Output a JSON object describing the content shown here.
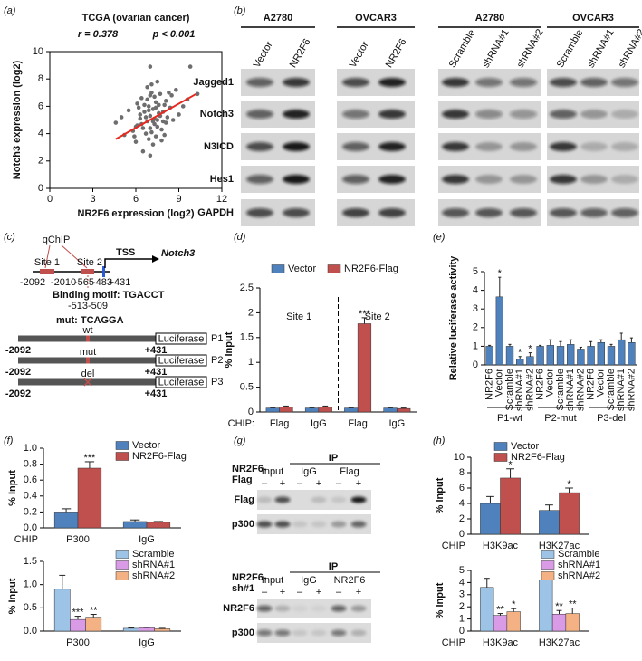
{
  "panel_labels": [
    "(a)",
    "(b)",
    "(c)",
    "(d)",
    "(e)",
    "(f)",
    "(g)",
    "(h)"
  ],
  "chart_data": [
    {
      "type": "scatter",
      "title": "TCGA (ovarian cancer)",
      "annotations": [
        "r = 0.378",
        "p < 0.001"
      ],
      "x_label": "NR2F6 expression (log2)",
      "y_label": "Notch3 expression (log2)",
      "color": "#6e6e6e",
      "x": [
        5.2,
        5.8,
        6.1,
        6.3,
        6.5,
        6.6,
        6.8,
        6.9,
        7.0,
        7.1,
        7.2,
        7.3,
        7.4,
        7.5,
        7.6,
        7.8,
        8.0,
        8.2,
        8.5,
        9.0,
        9.6,
        10.3,
        4.6,
        5.5,
        6.0,
        6.2,
        6.4,
        6.7,
        6.9,
        7.0,
        7.1,
        7.2,
        7.4,
        7.5,
        7.7,
        7.9,
        8.1,
        8.4,
        8.8,
        9.3,
        5.0,
        5.9,
        6.3,
        6.6,
        6.8,
        7.0,
        7.3,
        7.5,
        7.8,
        8.1,
        8.6,
        6.5,
        6.9,
        7.2,
        7.6,
        7.0,
        6.8,
        7.4,
        6.1,
        7.9,
        8.3,
        7.1,
        6.7,
        7.3,
        7.7,
        6.4,
        7.0,
        8.0,
        9.8,
        6.0
      ],
      "y": [
        3.9,
        4.2,
        4.6,
        5.1,
        4.4,
        5.6,
        4.9,
        6.0,
        5.3,
        4.1,
        5.8,
        4.7,
        6.3,
        5.0,
        5.5,
        4.3,
        6.1,
        5.2,
        6.8,
        5.4,
        6.5,
        6.9,
        4.8,
        5.7,
        3.4,
        5.9,
        6.6,
        4.0,
        3.6,
        6.8,
        7.0,
        3.2,
        5.9,
        4.5,
        6.9,
        5.6,
        4.8,
        5.9,
        7.2,
        6.0,
        5.2,
        3.8,
        5.4,
        6.1,
        7.4,
        4.4,
        5.1,
        7.8,
        3.5,
        6.4,
        5.0,
        2.7,
        5.7,
        4.9,
        6.1,
        8.9,
        6.5,
        3.8,
        6.2,
        4.9,
        7.0,
        7.6,
        5.2,
        6.7,
        5.3,
        4.7,
        2.4,
        3.9,
        8.9,
        4.5
      ],
      "fit_line": {
        "x": [
          4.6,
          10.2
        ],
        "y": [
          3.6,
          6.9
        ],
        "color": "#e8281e"
      },
      "xlim": [
        0,
        12
      ],
      "xticks": [
        0,
        3,
        6,
        9,
        12
      ],
      "ylim": [
        0,
        10
      ],
      "yticks": [
        0,
        2,
        4,
        6,
        8,
        10
      ]
    },
    {
      "type": "bar",
      "legend": "top",
      "y_label": "% Input",
      "category_title": "CHIP:",
      "categories": [
        "Flag",
        "IgG",
        "Flag",
        "IgG"
      ],
      "group_labels": [
        "Site 1",
        "Site 2"
      ],
      "group_divider": true,
      "series": [
        {
          "name": "Vector",
          "color": "#4f81bd",
          "values": [
            0.08,
            0.08,
            0.08,
            0.08
          ],
          "errors": [
            0.01,
            0.01,
            0.01,
            0.01
          ]
        },
        {
          "name": "NR2F6-Flag",
          "color": "#c0504d",
          "values": [
            0.1,
            0.1,
            1.78,
            0.07
          ],
          "errors": [
            0.02,
            0.02,
            0.12,
            0.01
          ],
          "significance": [
            null,
            null,
            "***",
            null
          ]
        }
      ],
      "ylim": [
        0,
        2.5
      ],
      "yticks": [
        0,
        0.5,
        1,
        1.5,
        2,
        2.5
      ]
    },
    {
      "type": "bar",
      "y_label": "Relative luciferase activity",
      "rotate_labels": true,
      "categories": [
        "NR2F6",
        "Vector",
        "Scramble",
        "shRNA#1",
        "shRNA#2",
        "NR2F6",
        "Vector",
        "Scramble",
        "shRNA#1",
        "shRNA#2",
        "NR2F6",
        "Vector",
        "Scramble",
        "shRNA#1",
        "shRNA#2"
      ],
      "group_labels": [
        "P1-wt",
        "P2-mut",
        "P3-del"
      ],
      "series": [
        {
          "color": "#4f81bd",
          "values": [
            1.0,
            3.65,
            1.0,
            0.3,
            0.45,
            1.0,
            1.05,
            1.0,
            1.1,
            0.85,
            1.0,
            1.2,
            1.0,
            1.35,
            1.2
          ],
          "errors": [
            0.05,
            1.05,
            0.1,
            0.15,
            0.2,
            0.05,
            0.3,
            0.25,
            0.25,
            0.1,
            0.25,
            0.15,
            0.1,
            0.35,
            0.25
          ],
          "significance": [
            null,
            "*",
            null,
            "*",
            "*",
            null,
            null,
            null,
            null,
            null,
            null,
            null,
            null,
            null,
            null
          ]
        }
      ],
      "ylim": [
        0,
        5
      ],
      "yticks": [
        0,
        1,
        2,
        3,
        4,
        5
      ]
    },
    {
      "type": "bar",
      "legend": "upper right",
      "y_label": "% Input",
      "category_title": "CHIP",
      "categories": [
        "P300",
        "IgG"
      ],
      "series": [
        {
          "name": "Vector",
          "color": "#4f81bd",
          "values": [
            0.2,
            0.08
          ],
          "errors": [
            0.04,
            0.02
          ]
        },
        {
          "name": "NR2F6-Flag",
          "color": "#c0504d",
          "values": [
            0.75,
            0.07
          ],
          "errors": [
            0.08,
            0.01
          ],
          "significance": [
            "***",
            null
          ]
        }
      ],
      "ylim": [
        0,
        1
      ],
      "yticks": [
        {
          "value": 0,
          "label": "0.0"
        },
        0.2,
        0.4,
        0.6,
        0.8,
        {
          "value": 1,
          "label": "1.0"
        }
      ]
    },
    {
      "type": "bar",
      "legend": "upper right",
      "y_label": "% Input",
      "categories": [
        "P300",
        "IgG"
      ],
      "series": [
        {
          "name": "Scramble",
          "color": "#9dc3e6",
          "values": [
            0.9,
            0.06
          ],
          "errors": [
            0.3,
            0.01
          ]
        },
        {
          "name": "shRNA#1",
          "color": "#d99ae6",
          "values": [
            0.25,
            0.07
          ],
          "errors": [
            0.07,
            0.01
          ],
          "significance": [
            "***",
            null
          ]
        },
        {
          "name": "shRNA#2",
          "color": "#f4b183",
          "values": [
            0.3,
            0.05
          ],
          "errors": [
            0.06,
            0.01
          ],
          "significance": [
            "**",
            null
          ]
        }
      ],
      "ylim": [
        0,
        1.5
      ],
      "yticks": [
        {
          "value": 0,
          "label": "0.0"
        },
        0.5,
        {
          "value": 1,
          "label": "1.0"
        },
        1.5
      ]
    },
    {
      "type": "bar",
      "legend": "upper right",
      "y_label": "% Input",
      "category_title": "CHIP",
      "categories": [
        "H3K9ac",
        "H3K27ac"
      ],
      "series": [
        {
          "name": "Vector",
          "color": "#4f81bd",
          "values": [
            4.0,
            3.1
          ],
          "errors": [
            0.9,
            0.7
          ]
        },
        {
          "name": "NR2F6-Flag",
          "color": "#c0504d",
          "values": [
            7.3,
            5.4
          ],
          "errors": [
            1.2,
            0.6
          ],
          "significance": [
            "*",
            "*"
          ]
        }
      ],
      "ylim": [
        0,
        10
      ],
      "yticks": [
        0,
        2,
        4,
        6,
        8,
        10
      ]
    },
    {
      "type": "bar",
      "legend": "upper right",
      "y_label": "% Input",
      "category_title": "CHIP",
      "categories": [
        "H3K9ac",
        "H3K27ac"
      ],
      "series": [
        {
          "name": "Scramble",
          "color": "#9dc3e6",
          "values": [
            3.6,
            4.2
          ],
          "errors": [
            0.75,
            0.5
          ]
        },
        {
          "name": "shRNA#1",
          "color": "#d99ae6",
          "values": [
            1.3,
            1.4
          ],
          "errors": [
            0.15,
            0.3
          ],
          "significance": [
            "**",
            "**"
          ]
        },
        {
          "name": "shRNA#2",
          "color": "#f4b183",
          "values": [
            1.6,
            1.45
          ],
          "errors": [
            0.25,
            0.45
          ],
          "significance": [
            "*",
            "**"
          ]
        }
      ],
      "ylim": [
        0,
        5
      ],
      "yticks": [
        0,
        1,
        2,
        3,
        4,
        5
      ]
    }
  ],
  "blot_b": {
    "groups": [
      {
        "name": "A2780",
        "lanes": [
          "Vector",
          "NR2F6"
        ]
      },
      {
        "name": "OVCAR3",
        "lanes": [
          "Vector",
          "NR2F6"
        ]
      },
      {
        "name": "A2780",
        "lanes": [
          "Scramble",
          "shRNA#1",
          "shRNA#2"
        ]
      },
      {
        "name": "OVCAR3",
        "lanes": [
          "Scramble",
          "shRNA#1",
          "shRNA#2"
        ]
      }
    ],
    "rows": [
      "Jagged1",
      "Notch3",
      "N3ICD",
      "Hes1",
      "GAPDH"
    ]
  },
  "diagram_c": {
    "qchip": "qChIP",
    "sites": [
      "Site 1",
      "Site 2"
    ],
    "tss": "TSS",
    "gene": "Notch3",
    "coords": [
      "-2092",
      "-2010",
      "-565",
      "-483",
      "+431"
    ],
    "motif": "Binding motif: TGACCT",
    "motif_coords": [
      "-513",
      "-509"
    ],
    "mut": "mut: TCAGGA",
    "constructs": [
      {
        "tag": "wt",
        "name": "P1"
      },
      {
        "tag": "mut",
        "name": "P2"
      },
      {
        "tag": "del",
        "name": "P3"
      }
    ],
    "start": "-2092",
    "end": "+431",
    "reporter": "Luciferase"
  },
  "blot_g": {
    "top": {
      "condition": [
        "NR2F6-",
        "Flag"
      ],
      "ip": "IP",
      "lanes": [
        "Input",
        "IgG",
        "Flag"
      ],
      "signs": [
        "–",
        "+",
        "–",
        "+",
        "–",
        "+"
      ],
      "rows": [
        "Flag",
        "p300"
      ]
    },
    "bottom": {
      "condition": [
        "NR2F6-",
        "sh#1"
      ],
      "ip": "IP",
      "lanes": [
        "Input",
        "IgG",
        "NR2F6"
      ],
      "signs": [
        "–",
        "+",
        "–",
        "+",
        "–",
        "+"
      ],
      "rows": [
        "NR2F6",
        "p300"
      ]
    }
  }
}
